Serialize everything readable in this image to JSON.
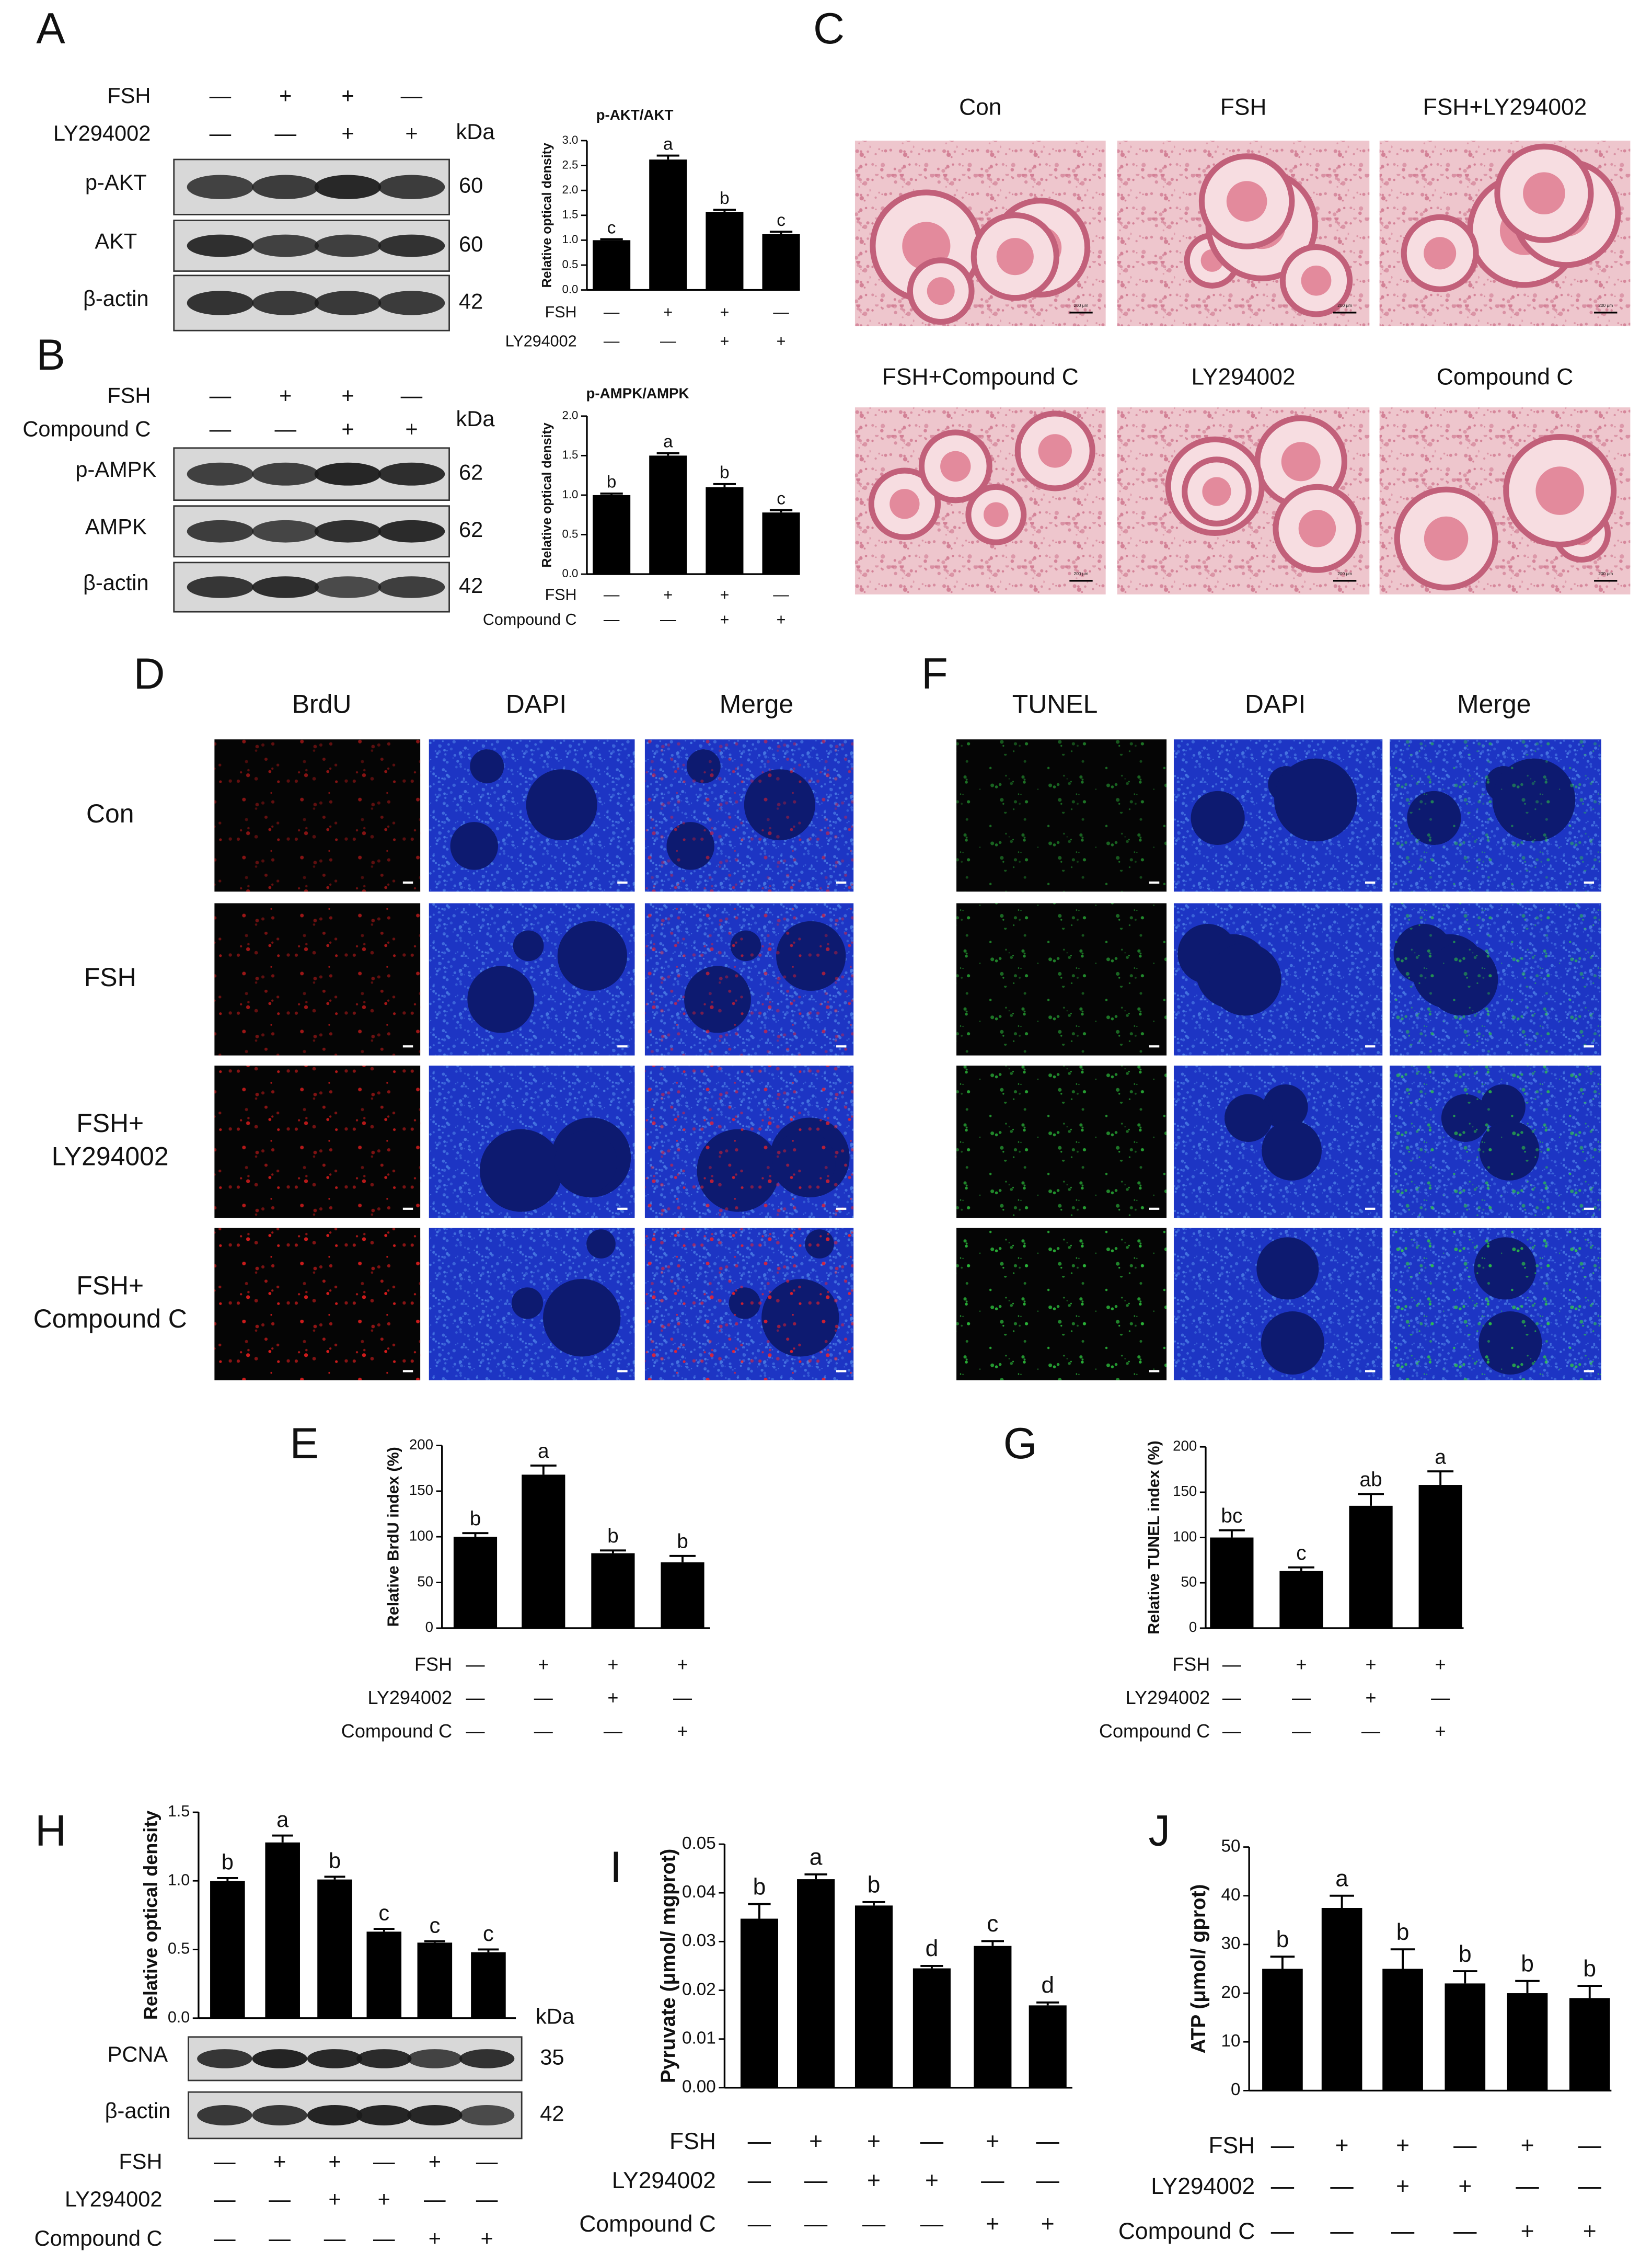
{
  "panel_labels": [
    "A",
    "B",
    "C",
    "D",
    "E",
    "F",
    "G",
    "H",
    "I",
    "J"
  ],
  "blots": [
    {
      "conditions": [
        {
          "name": "FSH",
          "signs": [
            "—",
            "+",
            "+",
            "—"
          ]
        },
        {
          "name": "LY294002",
          "signs": [
            "—",
            "—",
            "+",
            "+"
          ]
        }
      ],
      "unit": "kDa",
      "bands": [
        {
          "name": "p-AKT",
          "mw": 60
        },
        {
          "name": "AKT",
          "mw": 60
        },
        {
          "name": "β-actin",
          "mw": 42
        }
      ]
    },
    {
      "conditions": [
        {
          "name": "FSH",
          "signs": [
            "—",
            "+",
            "+",
            "—"
          ]
        },
        {
          "name": "Compound C",
          "signs": [
            "—",
            "—",
            "+",
            "+"
          ]
        }
      ],
      "unit": "kDa",
      "bands": [
        {
          "name": "p-AMPK",
          "mw": 62
        },
        {
          "name": "AMPK",
          "mw": 62
        },
        {
          "name": "β-actin",
          "mw": 42
        }
      ]
    },
    {
      "unit": "kDa",
      "bands": [
        {
          "name": "PCNA",
          "mw": 35
        },
        {
          "name": "β-actin",
          "mw": 42
        }
      ]
    }
  ],
  "histology": {
    "images": [
      "Con",
      "FSH",
      "FSH+LY294002",
      "FSH+Compound C",
      "LY294002",
      "Compound C"
    ],
    "scale_bar": "200 μm"
  },
  "brdu": {
    "columns": [
      "BrdU",
      "DAPI",
      "Merge"
    ],
    "rows": [
      [
        "Con"
      ],
      [
        "FSH"
      ],
      [
        "FSH+",
        "LY294002"
      ],
      [
        "FSH+",
        "Compound C"
      ]
    ]
  },
  "tunel": {
    "columns": [
      "TUNEL",
      "DAPI",
      "Merge"
    ]
  },
  "chart_data": [
    {
      "type": "bar",
      "title": "p-AKT/AKT",
      "y_label": "Relative optical density",
      "color": "#000000",
      "values": [
        1.0,
        2.62,
        1.57,
        1.12
      ],
      "errors": [
        0.02,
        0.08,
        0.04,
        0.05
      ],
      "letters": [
        "c",
        "a",
        "b",
        "c"
      ],
      "ylim": [
        0,
        3.0
      ],
      "yticks": [
        {
          "value": 0,
          "label": "0.0"
        },
        {
          "value": 0.5,
          "label": "0.5"
        },
        {
          "value": 1,
          "label": "1.0"
        },
        {
          "value": 1.5,
          "label": "1.5"
        },
        {
          "value": 2,
          "label": "2.0"
        },
        {
          "value": 2.5,
          "label": "2.5"
        },
        {
          "value": 3,
          "label": "3.0"
        }
      ],
      "conditions": [
        {
          "name": "FSH",
          "signs": [
            "—",
            "+",
            "+",
            "—"
          ]
        },
        {
          "name": "LY294002",
          "signs": [
            "—",
            "—",
            "+",
            "+"
          ]
        }
      ]
    },
    {
      "type": "bar",
      "title": "p-AMPK/AMPK",
      "y_label": "Relative optical density",
      "color": "#000000",
      "values": [
        1.0,
        1.5,
        1.1,
        0.78
      ],
      "errors": [
        0.02,
        0.03,
        0.04,
        0.03
      ],
      "letters": [
        "b",
        "a",
        "b",
        "c"
      ],
      "ylim": [
        0,
        2.0
      ],
      "yticks": [
        {
          "value": 0,
          "label": "0.0"
        },
        {
          "value": 0.5,
          "label": "0.5"
        },
        {
          "value": 1,
          "label": "1.0"
        },
        {
          "value": 1.5,
          "label": "1.5"
        },
        {
          "value": 2,
          "label": "2.0"
        }
      ],
      "conditions": [
        {
          "name": "FSH",
          "signs": [
            "—",
            "+",
            "+",
            "—"
          ]
        },
        {
          "name": "Compound C",
          "signs": [
            "—",
            "—",
            "+",
            "+"
          ]
        }
      ]
    },
    {
      "type": "bar",
      "y_label": "Relative BrdU index (%)",
      "color": "#000000",
      "values": [
        100,
        168,
        82,
        72
      ],
      "errors": [
        4,
        10,
        3,
        7
      ],
      "letters": [
        "b",
        "a",
        "b",
        "b"
      ],
      "ylim": [
        0,
        200
      ],
      "yticks": [
        0,
        50,
        100,
        150,
        200
      ],
      "conditions": [
        {
          "name": "FSH",
          "signs": [
            "—",
            "+",
            "+",
            "+"
          ]
        },
        {
          "name": "LY294002",
          "signs": [
            "—",
            "—",
            "+",
            "—"
          ]
        },
        {
          "name": "Compound C",
          "signs": [
            "—",
            "—",
            "—",
            "+"
          ]
        }
      ]
    },
    {
      "type": "bar",
      "y_label": "Relative TUNEL index (%)",
      "color": "#000000",
      "values": [
        100,
        63,
        135,
        158
      ],
      "errors": [
        8,
        4,
        13,
        15
      ],
      "letters": [
        "bc",
        "c",
        "ab",
        "a"
      ],
      "ylim": [
        0,
        200
      ],
      "yticks": [
        0,
        50,
        100,
        150,
        200
      ],
      "conditions": [
        {
          "name": "FSH",
          "signs": [
            "—",
            "+",
            "+",
            "+"
          ]
        },
        {
          "name": "LY294002",
          "signs": [
            "—",
            "—",
            "+",
            "—"
          ]
        },
        {
          "name": "Compound C",
          "signs": [
            "—",
            "—",
            "—",
            "+"
          ]
        }
      ]
    },
    {
      "type": "bar",
      "y_label": "Relative optical density",
      "color": "#000000",
      "values": [
        1.0,
        1.28,
        1.01,
        0.63,
        0.55,
        0.48
      ],
      "errors": [
        0.02,
        0.05,
        0.02,
        0.02,
        0.01,
        0.02
      ],
      "letters": [
        "b",
        "a",
        "b",
        "c",
        "c",
        "c"
      ],
      "ylim": [
        0,
        1.5
      ],
      "yticks": [
        {
          "value": 0,
          "label": "0.0"
        },
        {
          "value": 0.5,
          "label": "0.5"
        },
        {
          "value": 1,
          "label": "1.0"
        },
        {
          "value": 1.5,
          "label": "1.5"
        }
      ],
      "conditions": [
        {
          "name": "FSH",
          "signs": [
            "—",
            "+",
            "+",
            "—",
            "+",
            "—"
          ]
        },
        {
          "name": "LY294002",
          "signs": [
            "—",
            "—",
            "+",
            "+",
            "—",
            "—"
          ]
        },
        {
          "name": "Compound C",
          "signs": [
            "—",
            "—",
            "—",
            "—",
            "+",
            "+"
          ]
        }
      ]
    },
    {
      "type": "bar",
      "y_label": "Pyruvate (μmol/ mgprot)",
      "color": "#000000",
      "values": [
        0.0347,
        0.0428,
        0.0374,
        0.0245,
        0.0291,
        0.0169
      ],
      "errors": [
        0.003,
        0.001,
        0.0007,
        0.0005,
        0.001,
        0.0006
      ],
      "letters": [
        "b",
        "a",
        "b",
        "d",
        "c",
        "d"
      ],
      "ylim": [
        0,
        0.05
      ],
      "yticks": [
        {
          "value": 0,
          "label": "0.00"
        },
        {
          "value": 0.01,
          "label": "0.01"
        },
        {
          "value": 0.02,
          "label": "0.02"
        },
        {
          "value": 0.03,
          "label": "0.03"
        },
        {
          "value": 0.04,
          "label": "0.04"
        },
        {
          "value": 0.05,
          "label": "0.05"
        }
      ],
      "conditions": [
        {
          "name": "FSH",
          "signs": [
            "—",
            "+",
            "+",
            "—",
            "+",
            "—"
          ]
        },
        {
          "name": "LY294002",
          "signs": [
            "—",
            "—",
            "+",
            "+",
            "—",
            "—"
          ]
        },
        {
          "name": "Compound C",
          "signs": [
            "—",
            "—",
            "—",
            "—",
            "+",
            "+"
          ]
        }
      ]
    },
    {
      "type": "bar",
      "y_label": "ATP (μmol/ gprot)",
      "color": "#000000",
      "values": [
        25,
        37.5,
        25,
        22,
        20,
        19
      ],
      "errors": [
        2.5,
        2.5,
        4,
        2.5,
        2.5,
        2.5
      ],
      "letters": [
        "b",
        "a",
        "b",
        "b",
        "b",
        "b"
      ],
      "ylim": [
        0,
        50
      ],
      "yticks": [
        0,
        10,
        20,
        30,
        40,
        50
      ],
      "conditions": [
        {
          "name": "FSH",
          "signs": [
            "—",
            "+",
            "+",
            "—",
            "+",
            "—"
          ]
        },
        {
          "name": "LY294002",
          "signs": [
            "—",
            "—",
            "+",
            "+",
            "—",
            "—"
          ]
        },
        {
          "name": "Compound C",
          "signs": [
            "—",
            "—",
            "—",
            "—",
            "+",
            "+"
          ]
        }
      ]
    }
  ]
}
